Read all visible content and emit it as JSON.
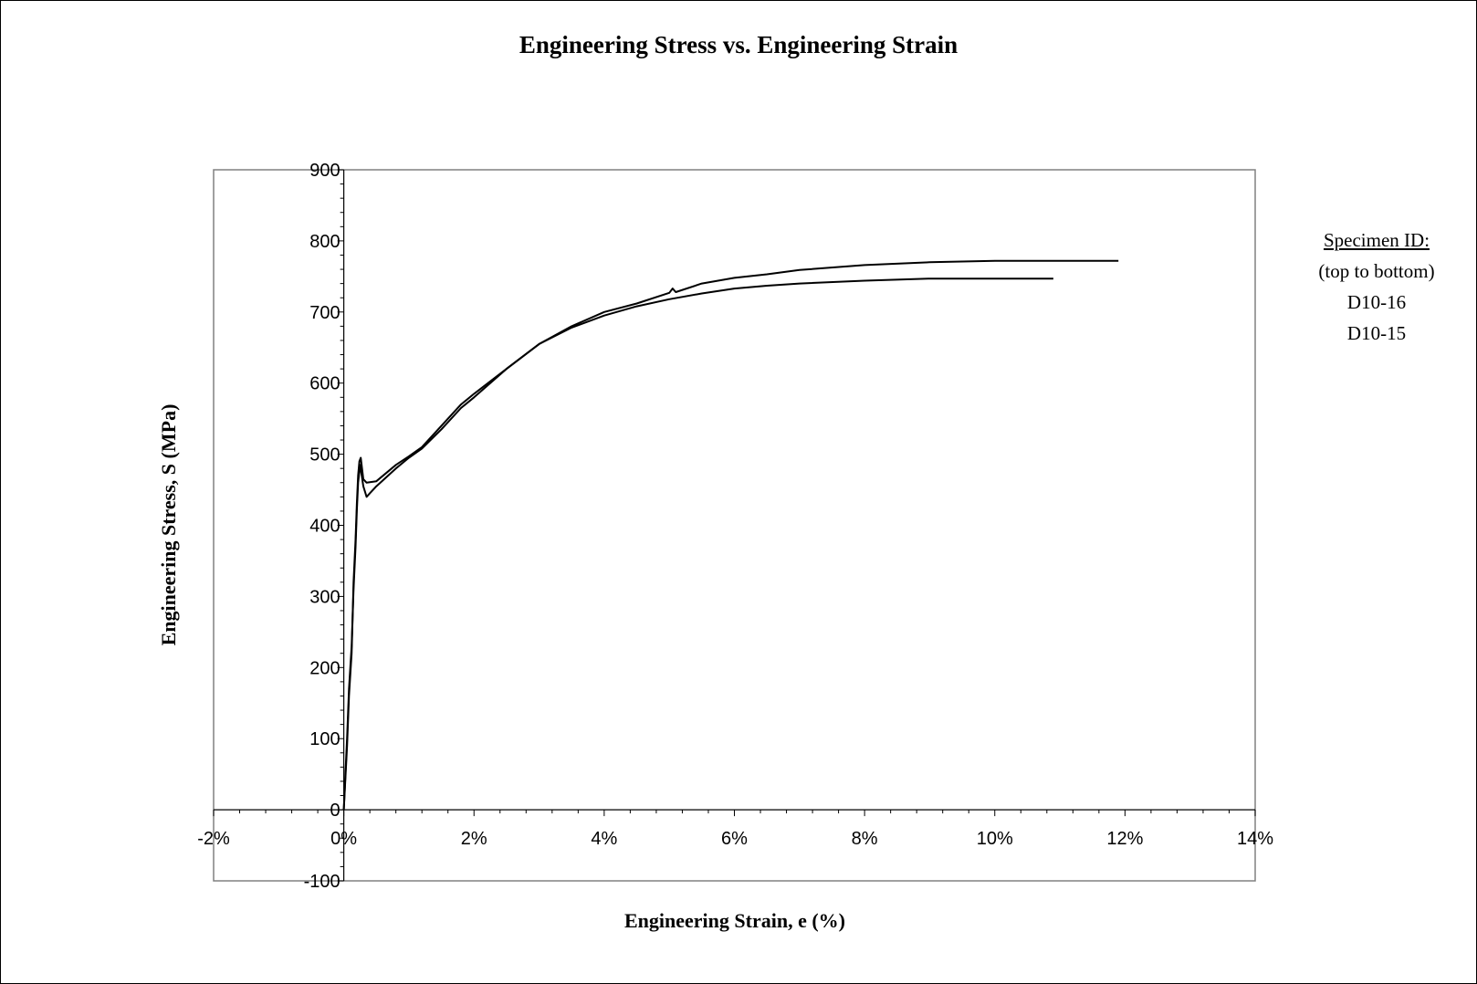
{
  "chart_data": {
    "type": "line",
    "title": "Engineering Stress vs. Engineering Strain",
    "xlabel": "Engineering Strain, e (%)",
    "ylabel": "Engineering Stress, S (MPa)",
    "xlim": [
      -2,
      14
    ],
    "ylim": [
      -100,
      900
    ],
    "x_ticks": [
      "-2%",
      "0%",
      "2%",
      "4%",
      "6%",
      "8%",
      "10%",
      "12%",
      "14%"
    ],
    "y_ticks": [
      "-100",
      "0",
      "100",
      "200",
      "300",
      "400",
      "500",
      "600",
      "700",
      "800",
      "900"
    ],
    "grid": false,
    "legend_placement": "right",
    "line_color": "#000000",
    "series": [
      {
        "name": "D10-16",
        "x": [
          0,
          0.05,
          0.08,
          0.12,
          0.15,
          0.18,
          0.2,
          0.22,
          0.24,
          0.26,
          0.28,
          0.3,
          0.35,
          0.5,
          0.8,
          1.0,
          1.2,
          1.5,
          1.8,
          2.0,
          2.5,
          3.0,
          3.5,
          4.0,
          4.5,
          5.0,
          5.05,
          5.1,
          5.5,
          6.0,
          6.5,
          7.0,
          8.0,
          9.0,
          10.0,
          11.0,
          11.9
        ],
        "y": [
          0,
          90,
          160,
          220,
          320,
          380,
          430,
          470,
          490,
          495,
          480,
          465,
          460,
          462,
          485,
          497,
          510,
          540,
          570,
          585,
          620,
          655,
          680,
          700,
          712,
          727,
          733,
          728,
          740,
          748,
          753,
          759,
          766,
          770,
          772,
          772,
          772
        ]
      },
      {
        "name": "D10-15",
        "x": [
          0,
          0.05,
          0.08,
          0.12,
          0.15,
          0.18,
          0.2,
          0.22,
          0.25,
          0.3,
          0.35,
          0.4,
          0.5,
          0.8,
          1.0,
          1.2,
          1.5,
          1.8,
          2.0,
          2.5,
          3.0,
          3.5,
          4.0,
          4.5,
          5.0,
          5.5,
          6.0,
          6.5,
          7.0,
          8.0,
          9.0,
          10.0,
          10.9
        ],
        "y": [
          0,
          100,
          170,
          230,
          310,
          370,
          420,
          460,
          485,
          455,
          440,
          445,
          455,
          480,
          495,
          508,
          535,
          565,
          580,
          620,
          655,
          678,
          695,
          708,
          718,
          726,
          733,
          737,
          740,
          744,
          747,
          747,
          747
        ]
      }
    ]
  },
  "legend": {
    "header": "Specimen ID:",
    "note": "(top to bottom)",
    "items": [
      "D10-16",
      "D10-15"
    ]
  }
}
